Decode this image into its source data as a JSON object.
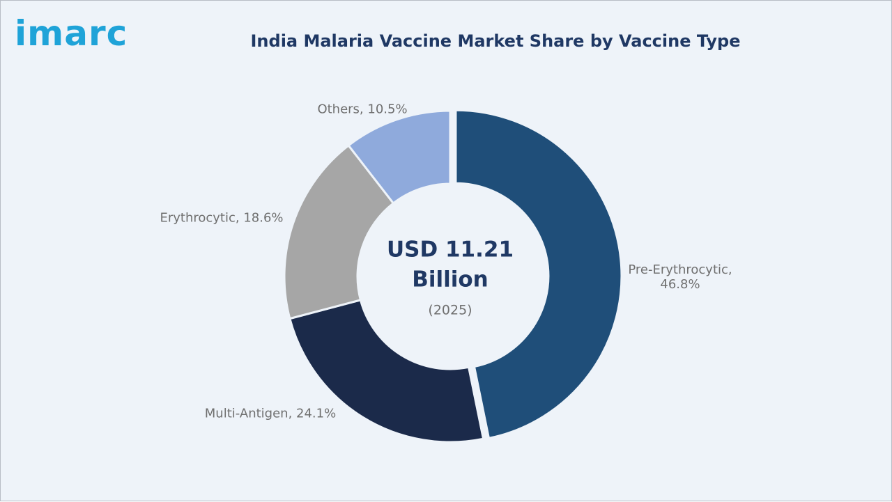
{
  "logo": "imarc",
  "chart_data": {
    "type": "donut",
    "title": "India Malaria Vaccine Market Share by Vaccine Type",
    "values": [
      46.8,
      24.1,
      18.6,
      10.5
    ],
    "value_labels": [
      "Pre-Erythrocytic, 46.8%",
      "Multi-Antigen, 24.1%",
      "Erythrocytic, 18.6%",
      "Others, 10.5%"
    ],
    "colors": [
      "#1f4e79",
      "#1b2a4a",
      "#a6a6a6",
      "#8faadc"
    ],
    "center_label": "USD 11.21 Billion",
    "center_sublabel": "(2025)"
  }
}
